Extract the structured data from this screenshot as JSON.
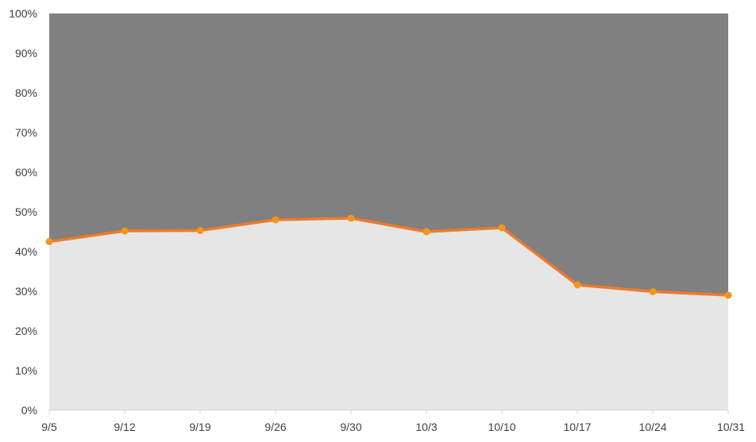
{
  "chart_data": {
    "type": "area",
    "categories": [
      "9/5",
      "9/12",
      "9/19",
      "9/26",
      "9/30",
      "10/3",
      "10/10",
      "10/17",
      "10/24",
      "10/31"
    ],
    "series": [
      {
        "values": [
          42.5,
          45.2,
          45.3,
          48.0,
          48.4,
          45.0,
          46.0,
          31.6,
          29.9,
          29.0
        ],
        "color": "#e6e6e6"
      },
      {
        "values": [
          57.5,
          54.8,
          54.7,
          52.0,
          51.6,
          55.0,
          54.0,
          68.4,
          70.1,
          71.0
        ],
        "color": "#808080"
      }
    ],
    "line_color": "#f07a2a",
    "marker_color": "#f5951f",
    "yticks": [
      "0%",
      "10%",
      "20%",
      "30%",
      "40%",
      "50%",
      "60%",
      "70%",
      "80%",
      "90%",
      "100%"
    ],
    "ylim": [
      0,
      100
    ],
    "stacked": true,
    "grid": false,
    "legend": "none",
    "title": "",
    "xlabel": "",
    "ylabel": ""
  }
}
